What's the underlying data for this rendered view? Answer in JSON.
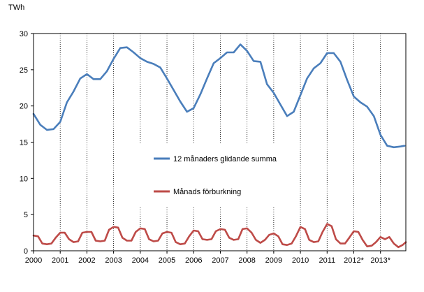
{
  "chart_data": {
    "type": "line",
    "title": "",
    "unit_label": "TWh",
    "xlabel": "",
    "ylabel": "",
    "ylim": [
      0,
      30
    ],
    "yticks": [
      0,
      5,
      10,
      15,
      20,
      25,
      30
    ],
    "xlim": [
      2000,
      2013.95
    ],
    "x_tick_labels": [
      "2000",
      "2001",
      "2002",
      "2003",
      "2004",
      "2005",
      "2006",
      "2007",
      "2008",
      "2009",
      "2010",
      "2011",
      "2012*",
      "2013*"
    ],
    "grid": "vertical dotted lines at year boundaries",
    "legend_placement": "center-left, inside plot",
    "series": [
      {
        "name": "12 månaders glidande summa",
        "color": "#4A7EBB",
        "x": [
          2000.0,
          2000.25,
          2000.5,
          2000.75,
          2001.0,
          2001.25,
          2001.5,
          2001.75,
          2002.0,
          2002.25,
          2002.5,
          2002.75,
          2003.0,
          2003.25,
          2003.5,
          2003.75,
          2004.0,
          2004.25,
          2004.5,
          2004.75,
          2005.0,
          2005.25,
          2005.5,
          2005.75,
          2006.0,
          2006.25,
          2006.5,
          2006.75,
          2007.0,
          2007.25,
          2007.5,
          2007.75,
          2008.0,
          2008.25,
          2008.5,
          2008.75,
          2009.0,
          2009.25,
          2009.5,
          2009.75,
          2010.0,
          2010.25,
          2010.5,
          2010.75,
          2011.0,
          2011.25,
          2011.5,
          2011.75,
          2012.0,
          2012.25,
          2012.5,
          2012.75,
          2013.0,
          2013.25,
          2013.5,
          2013.75,
          2013.9
        ],
        "values": [
          18.9,
          17.4,
          16.7,
          16.8,
          17.8,
          20.5,
          22.0,
          23.8,
          24.4,
          23.7,
          23.7,
          24.8,
          26.5,
          28.0,
          28.1,
          27.4,
          26.6,
          26.1,
          25.8,
          25.3,
          23.8,
          22.2,
          20.6,
          19.2,
          19.7,
          21.6,
          23.8,
          25.9,
          26.6,
          27.4,
          27.4,
          28.5,
          27.6,
          26.2,
          26.1,
          23.0,
          21.8,
          20.2,
          18.6,
          19.2,
          21.5,
          23.8,
          25.2,
          25.9,
          27.3,
          27.3,
          26.1,
          23.6,
          21.3,
          20.5,
          19.9,
          18.6,
          16.0,
          14.5,
          14.3,
          14.4,
          14.5
        ]
      },
      {
        "name": "Månads förburkning",
        "color": "#BE4B48",
        "x": [
          2000.0,
          2000.17,
          2000.33,
          2000.5,
          2000.67,
          2000.83,
          2001.0,
          2001.17,
          2001.33,
          2001.5,
          2001.67,
          2001.83,
          2002.0,
          2002.17,
          2002.33,
          2002.5,
          2002.67,
          2002.83,
          2003.0,
          2003.17,
          2003.33,
          2003.5,
          2003.67,
          2003.83,
          2004.0,
          2004.17,
          2004.33,
          2004.5,
          2004.67,
          2004.83,
          2005.0,
          2005.17,
          2005.33,
          2005.5,
          2005.67,
          2005.83,
          2006.0,
          2006.17,
          2006.33,
          2006.5,
          2006.67,
          2006.83,
          2007.0,
          2007.17,
          2007.33,
          2007.5,
          2007.67,
          2007.83,
          2008.0,
          2008.17,
          2008.33,
          2008.5,
          2008.67,
          2008.83,
          2009.0,
          2009.17,
          2009.33,
          2009.5,
          2009.67,
          2009.83,
          2010.0,
          2010.17,
          2010.33,
          2010.5,
          2010.67,
          2010.83,
          2011.0,
          2011.17,
          2011.33,
          2011.5,
          2011.67,
          2011.83,
          2012.0,
          2012.17,
          2012.33,
          2012.5,
          2012.67,
          2012.83,
          2013.0,
          2013.17,
          2013.33,
          2013.5,
          2013.67,
          2013.83,
          2013.95
        ],
        "values": [
          2.1,
          2.0,
          1.0,
          0.9,
          1.0,
          1.8,
          2.5,
          2.5,
          1.6,
          1.2,
          1.3,
          2.5,
          2.6,
          2.6,
          1.4,
          1.3,
          1.4,
          2.9,
          3.3,
          3.2,
          1.8,
          1.4,
          1.4,
          2.6,
          3.1,
          3.0,
          1.6,
          1.3,
          1.4,
          2.4,
          2.6,
          2.5,
          1.2,
          0.9,
          1.0,
          2.0,
          2.8,
          2.7,
          1.6,
          1.5,
          1.6,
          2.7,
          3.0,
          2.9,
          1.8,
          1.5,
          1.6,
          3.0,
          3.1,
          2.5,
          1.5,
          1.1,
          1.5,
          2.2,
          2.4,
          2.0,
          0.9,
          0.8,
          1.0,
          2.0,
          3.3,
          3.0,
          1.5,
          1.2,
          1.3,
          2.6,
          3.7,
          3.4,
          1.6,
          1.0,
          1.0,
          1.8,
          2.7,
          2.6,
          1.5,
          0.6,
          0.7,
          1.2,
          1.9,
          1.6,
          1.9,
          1.0,
          0.5,
          0.8,
          1.2
        ]
      }
    ]
  }
}
